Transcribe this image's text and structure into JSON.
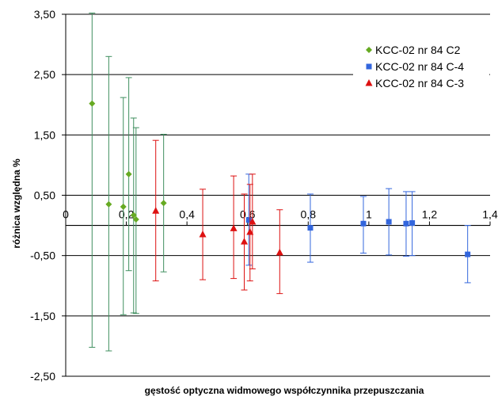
{
  "chart_data": {
    "type": "scatter",
    "xlabel": "gęstość optyczna widmowego współczynnika przepuszczania",
    "ylabel": "różnica względna %",
    "xlim": [
      0,
      1.4
    ],
    "ylim": [
      -2.5,
      3.5
    ],
    "x_ticks": [
      0,
      0.2,
      0.4,
      0.6,
      0.8,
      1,
      1.2,
      1.4
    ],
    "x_tick_labels": [
      "0",
      "0,2",
      "0,4",
      "0,6",
      "0,8",
      "1",
      "1,2",
      "1,4"
    ],
    "y_ticks": [
      3.5,
      2.5,
      1.5,
      0.5,
      -0.5,
      -1.5,
      -2.5
    ],
    "y_tick_labels": [
      "3,50",
      "2,50",
      "1,50",
      "0,50",
      "-0,50",
      "-1,50",
      "-2,50"
    ],
    "grid": "horizontal major gridlines",
    "legend_position": "top-right",
    "series": [
      {
        "name": "KCC-02 nr 84 C2",
        "marker": "diamond",
        "color": "#66AA22",
        "error_bar_color": "#3F8F5F",
        "points": [
          {
            "x": 0.087,
            "y": 2.02,
            "low": -2.02,
            "high": 3.52
          },
          {
            "x": 0.142,
            "y": 0.35,
            "low": -2.08,
            "high": 2.8
          },
          {
            "x": 0.19,
            "y": 0.31,
            "low": -1.48,
            "high": 2.12
          },
          {
            "x": 0.208,
            "y": 0.85,
            "low": -0.75,
            "high": 2.45
          },
          {
            "x": 0.224,
            "y": 0.17,
            "low": -1.45,
            "high": 1.78
          },
          {
            "x": 0.232,
            "y": 0.1,
            "low": -1.46,
            "high": 1.62
          },
          {
            "x": 0.323,
            "y": 0.37,
            "low": -0.77,
            "high": 1.51
          }
        ]
      },
      {
        "name": "KCC-02 nr 84 C-4",
        "marker": "square",
        "color": "#3366DD",
        "error_bar_color": "#3366DD",
        "points": [
          {
            "x": 0.604,
            "y": 0.09,
            "low": -0.66,
            "high": 0.85
          },
          {
            "x": 0.807,
            "y": -0.04,
            "low": -0.61,
            "high": 0.52
          },
          {
            "x": 0.982,
            "y": 0.03,
            "low": -0.46,
            "high": 0.48
          },
          {
            "x": 1.066,
            "y": 0.06,
            "low": -0.49,
            "high": 0.61
          },
          {
            "x": 1.123,
            "y": 0.03,
            "low": -0.51,
            "high": 0.56
          },
          {
            "x": 1.143,
            "y": 0.04,
            "low": -0.5,
            "high": 0.56
          },
          {
            "x": 1.326,
            "y": -0.48,
            "low": -0.95,
            "high": 0.0
          }
        ]
      },
      {
        "name": "KCC-02 nr 84 C-3",
        "marker": "triangle",
        "color": "#DD1111",
        "error_bar_color": "#DD1111",
        "points": [
          {
            "x": 0.297,
            "y": 0.24,
            "low": -0.92,
            "high": 1.41
          },
          {
            "x": 0.452,
            "y": -0.15,
            "low": -0.9,
            "high": 0.6
          },
          {
            "x": 0.554,
            "y": -0.05,
            "low": -0.88,
            "high": 0.82
          },
          {
            "x": 0.589,
            "y": -0.27,
            "low": -1.07,
            "high": 0.52
          },
          {
            "x": 0.608,
            "y": -0.11,
            "low": -0.92,
            "high": 0.68
          },
          {
            "x": 0.616,
            "y": 0.06,
            "low": -0.72,
            "high": 0.85
          },
          {
            "x": 0.706,
            "y": -0.45,
            "low": -1.13,
            "high": 0.26
          }
        ]
      }
    ]
  }
}
